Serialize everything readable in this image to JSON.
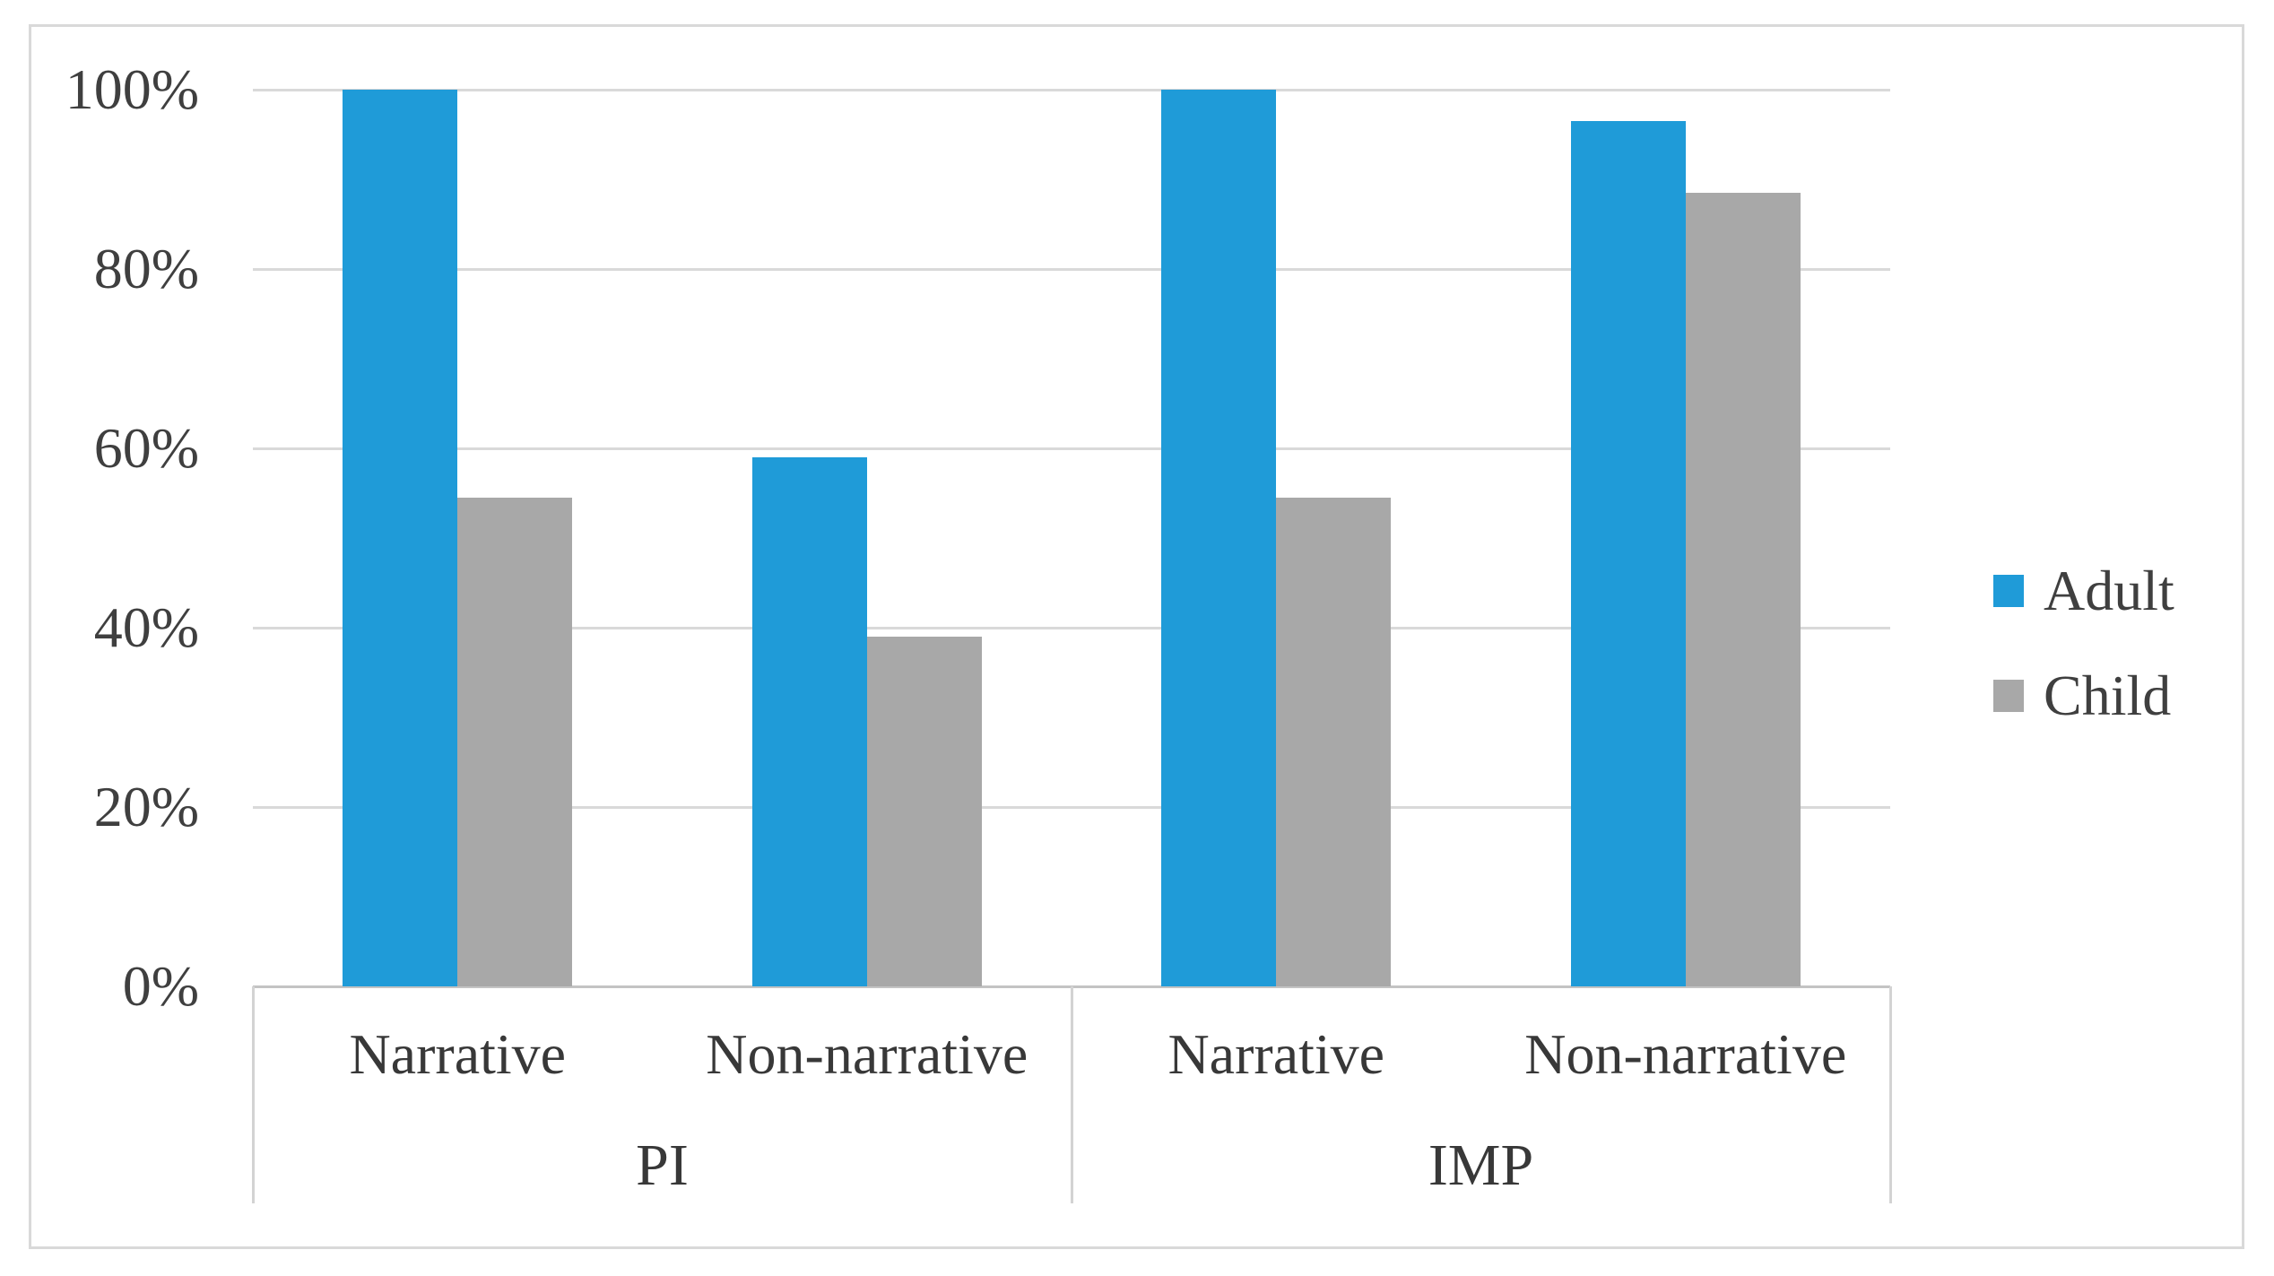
{
  "figure": {
    "background": "#FFFFFF",
    "border_color": "#D9D9D9"
  },
  "chart_data": {
    "type": "bar",
    "title": "",
    "y_axis": {
      "min": 0,
      "max": 100,
      "step": 20,
      "format": "percent",
      "tick_labels": [
        "0%",
        "20%",
        "40%",
        "60%",
        "80%",
        "100%"
      ],
      "gridlines": true,
      "gridline_color": "#D9D9D9"
    },
    "x_axis": {
      "groups": [
        {
          "label": "PI",
          "categories": [
            "Narrative",
            "Non-narrative"
          ]
        },
        {
          "label": "IMP",
          "categories": [
            "Narrative",
            "Non-narrative"
          ]
        }
      ]
    },
    "series": [
      {
        "name": "Adult",
        "color": "#1F9BD8",
        "values": [
          100,
          59,
          100,
          96.5
        ]
      },
      {
        "name": "Child",
        "color": "#A8A8A8",
        "values": [
          54.5,
          39,
          54.5,
          88.5
        ]
      }
    ],
    "legend": {
      "position": "right",
      "items": [
        {
          "label": "Adult",
          "color": "#1F9BD8"
        },
        {
          "label": "Child",
          "color": "#A8A8A8"
        }
      ]
    }
  }
}
